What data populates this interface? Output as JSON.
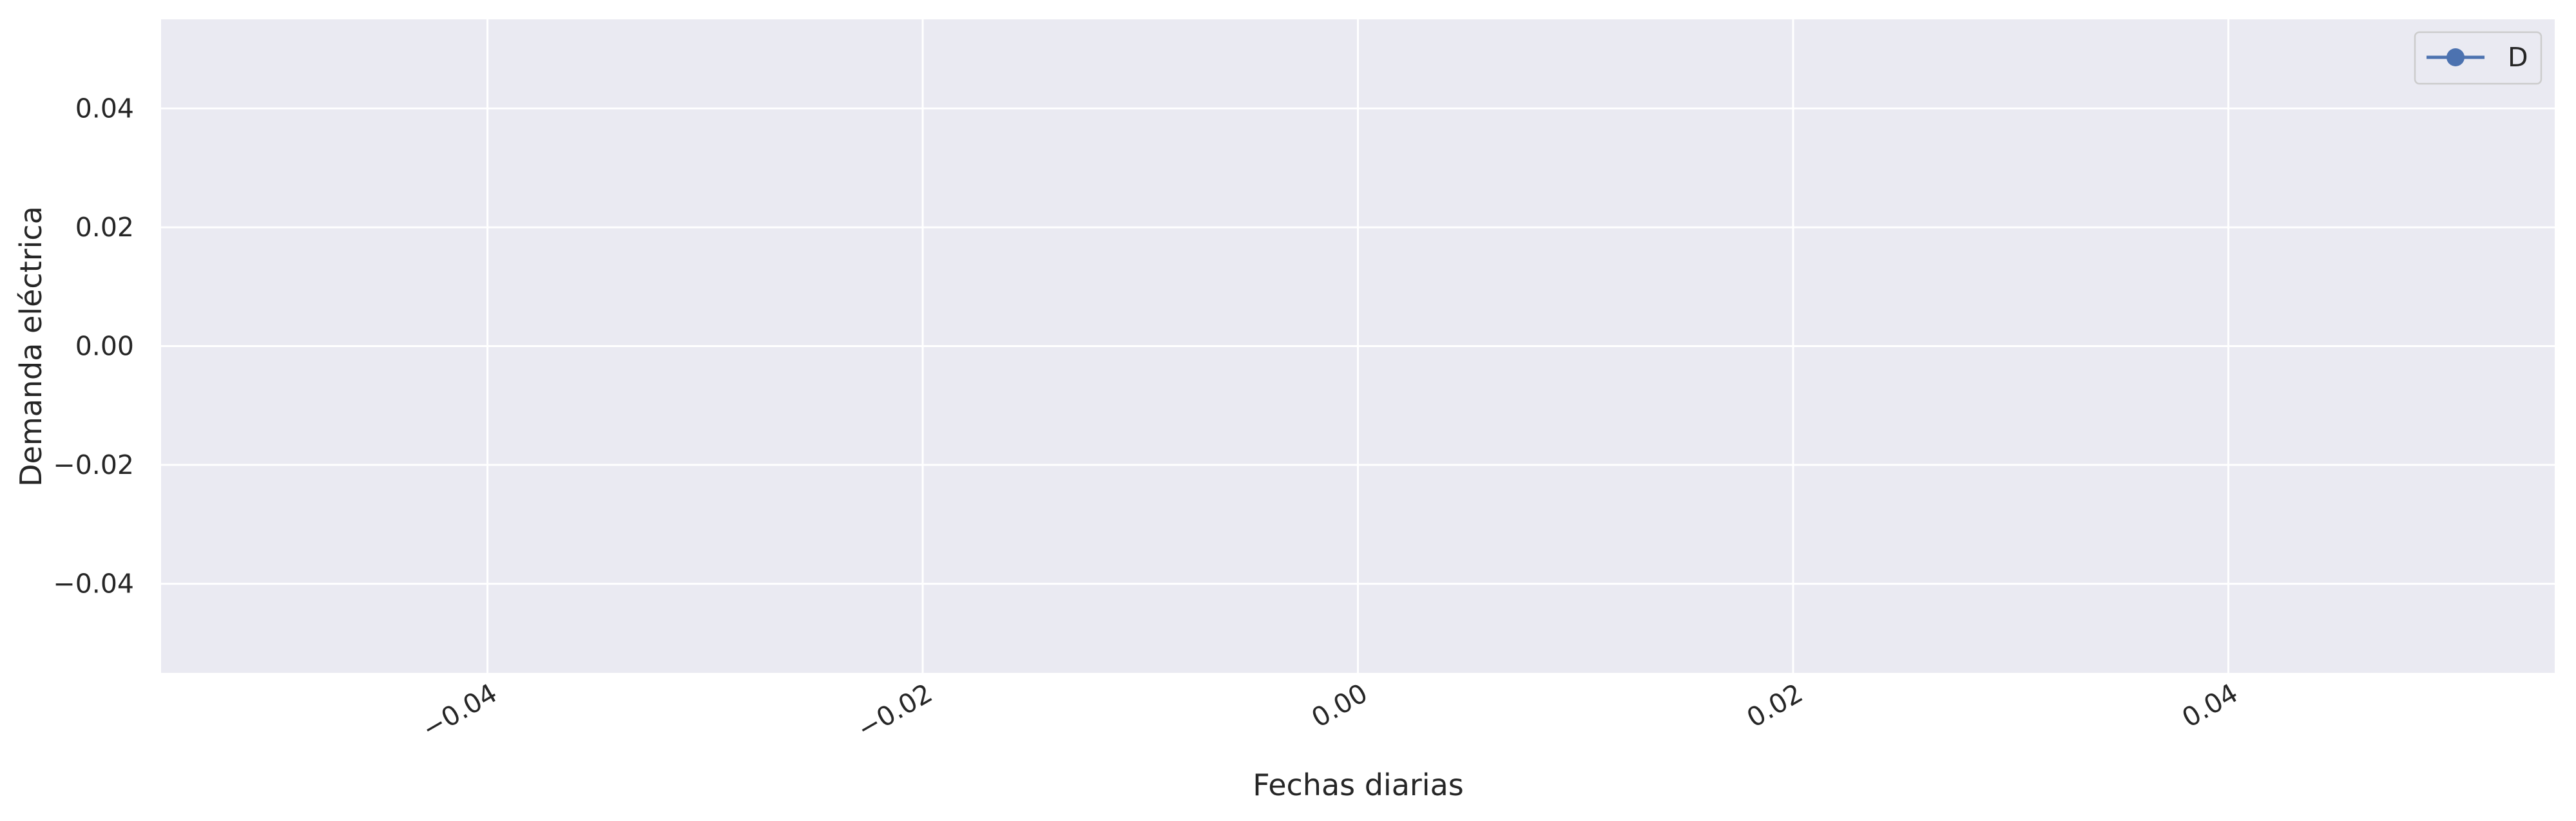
{
  "chart_data": {
    "type": "line",
    "title": "",
    "xlabel": "Fechas diarias",
    "ylabel": "Demanda eléctrica",
    "xlim": [
      -0.055,
      0.055
    ],
    "ylim": [
      -0.055,
      0.055
    ],
    "x_ticks": [
      -0.04,
      -0.02,
      0.0,
      0.02,
      0.04
    ],
    "x_tick_labels": [
      "−0.04",
      "−0.02",
      "0.00",
      "0.02",
      "0.04"
    ],
    "y_ticks": [
      0.04,
      0.02,
      0.0,
      -0.02,
      -0.04
    ],
    "y_tick_labels": [
      "0.04",
      "0.02",
      "0.00",
      "−0.02",
      "−0.04"
    ],
    "grid": true,
    "legend_position": "top-right",
    "series": [
      {
        "name": "D",
        "x": [],
        "y": [],
        "color": "#4c72b0",
        "marker": "circle"
      }
    ]
  },
  "colors": {
    "plot_background": "#eaeaf2",
    "grid": "#ffffff",
    "series": "#4c72b0"
  }
}
